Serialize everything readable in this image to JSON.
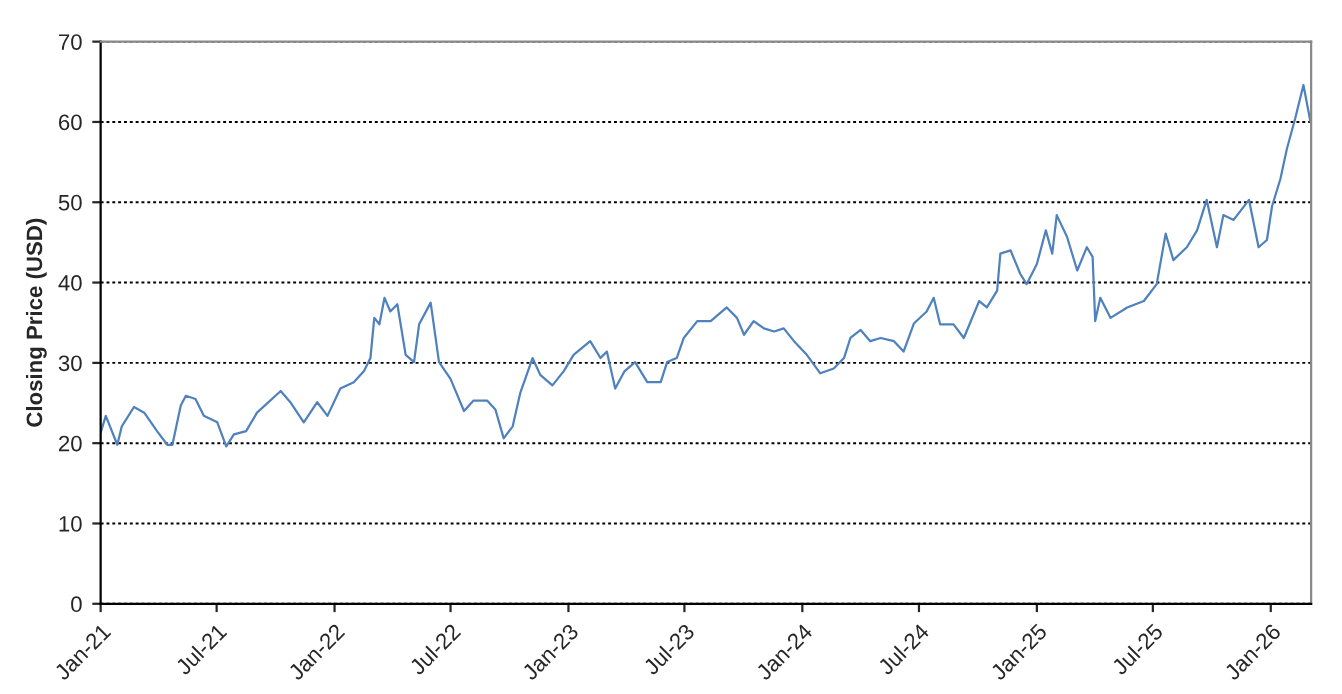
{
  "chart_data": {
    "type": "line",
    "ylabel": "Closing Price (USD)",
    "x": [
      "2021-01-01",
      "2021-01-09",
      "2021-01-27",
      "2021-02-03",
      "2021-02-22",
      "2021-03-10",
      "2021-03-30",
      "2021-04-15",
      "2021-04-23",
      "2021-05-06",
      "2021-05-14",
      "2021-05-29",
      "2021-06-11",
      "2021-07-02",
      "2021-07-16",
      "2021-07-28",
      "2021-08-16",
      "2021-09-02",
      "2021-10-09",
      "2021-10-24",
      "2021-11-14",
      "2021-12-05",
      "2021-12-21",
      "2022-01-10",
      "2022-01-31",
      "2022-02-16",
      "2022-02-26",
      "2022-03-04",
      "2022-03-12",
      "2022-03-20",
      "2022-03-29",
      "2022-04-09",
      "2022-04-22",
      "2022-05-05",
      "2022-05-13",
      "2022-05-31",
      "2022-06-13",
      "2022-07-01",
      "2022-07-22",
      "2022-08-06",
      "2022-08-27",
      "2022-09-09",
      "2022-09-22",
      "2022-10-06",
      "2022-10-18",
      "2022-11-06",
      "2022-11-18",
      "2022-12-07",
      "2022-12-25",
      "2023-01-09",
      "2023-02-04",
      "2023-02-20",
      "2023-03-02",
      "2023-03-15",
      "2023-03-29",
      "2023-04-15",
      "2023-05-04",
      "2023-05-25",
      "2023-06-04",
      "2023-06-19",
      "2023-06-30",
      "2023-07-21",
      "2023-08-11",
      "2023-09-05",
      "2023-09-21",
      "2023-10-02",
      "2023-10-17",
      "2023-11-02",
      "2023-11-18",
      "2023-12-03",
      "2023-12-19",
      "2024-01-08",
      "2024-01-29",
      "2024-02-19",
      "2024-03-06",
      "2024-03-16",
      "2024-04-01",
      "2024-04-16",
      "2024-05-02",
      "2024-05-23",
      "2024-06-07",
      "2024-06-23",
      "2024-07-13",
      "2024-07-24",
      "2024-08-03",
      "2024-08-24",
      "2024-09-09",
      "2024-10-03",
      "2024-10-15",
      "2024-10-31",
      "2024-11-05",
      "2024-11-21",
      "2024-12-06",
      "2024-12-16",
      "2025-01-01",
      "2025-01-15",
      "2025-01-25",
      "2025-02-01",
      "2025-02-17",
      "2025-03-05",
      "2025-03-20",
      "2025-03-29",
      "2025-04-02",
      "2025-04-10",
      "2025-04-26",
      "2025-05-22",
      "2025-06-17",
      "2025-07-07",
      "2025-07-21",
      "2025-08-02",
      "2025-08-23",
      "2025-09-08",
      "2025-09-23",
      "2025-10-09",
      "2025-10-19",
      "2025-11-04",
      "2025-11-28",
      "2025-12-13",
      "2025-12-26",
      "2026-01-03",
      "2026-01-16",
      "2026-01-26",
      "2026-02-08",
      "2026-02-21",
      "2026-03-04"
    ],
    "series": [
      {
        "color": "#4f81bd",
        "values": [
          21.3,
          23.4,
          19.8,
          22.1,
          24.5,
          23.8,
          21.5,
          19.8,
          19.8,
          24.7,
          25.9,
          25.5,
          23.4,
          22.6,
          19.6,
          21.1,
          21.5,
          23.8,
          26.5,
          25.1,
          22.6,
          25.1,
          23.4,
          26.8,
          27.6,
          29.0,
          30.6,
          35.6,
          34.8,
          38.1,
          36.4,
          37.3,
          31.0,
          30.1,
          34.8,
          37.5,
          30.1,
          28.0,
          24.0,
          25.3,
          25.3,
          24.2,
          20.6,
          22.1,
          26.3,
          30.6,
          28.5,
          27.2,
          29.0,
          31.0,
          32.7,
          30.6,
          31.4,
          26.8,
          28.9,
          30.1,
          27.6,
          27.6,
          30.1,
          30.6,
          33.1,
          35.2,
          35.2,
          36.9,
          35.6,
          33.5,
          35.2,
          34.3,
          33.9,
          34.3,
          32.7,
          31.0,
          28.7,
          29.3,
          30.6,
          33.1,
          34.1,
          32.7,
          33.1,
          32.7,
          31.4,
          34.9,
          36.4,
          38.1,
          34.8,
          34.8,
          33.1,
          37.7,
          36.9,
          39.0,
          43.6,
          44.0,
          41.1,
          39.8,
          42.3,
          46.5,
          43.6,
          48.4,
          45.7,
          41.5,
          44.4,
          43.2,
          35.2,
          38.1,
          35.6,
          36.9,
          37.7,
          39.8,
          46.1,
          42.8,
          44.4,
          46.5,
          50.3,
          44.4,
          48.4,
          47.8,
          50.3,
          44.4,
          45.3,
          49.5,
          52.9,
          56.6,
          60.4,
          64.6,
          60.0
        ]
      }
    ],
    "xlim": [
      "2021-01-01",
      "2026-03-05"
    ],
    "xticks": [
      {
        "value": "2021-01",
        "label": "Jan-21"
      },
      {
        "value": "2021-07",
        "label": "Jul-21"
      },
      {
        "value": "2022-01",
        "label": "Jan-22"
      },
      {
        "value": "2022-07",
        "label": "Jul-22"
      },
      {
        "value": "2023-01",
        "label": "Jan-23"
      },
      {
        "value": "2023-07",
        "label": "Jul-23"
      },
      {
        "value": "2024-01",
        "label": "Jan-24"
      },
      {
        "value": "2024-07",
        "label": "Jul-24"
      },
      {
        "value": "2025-01",
        "label": "Jan-25"
      },
      {
        "value": "2025-07",
        "label": "Jul-25"
      },
      {
        "value": "2026-01",
        "label": "Jan-26"
      }
    ],
    "ylim": [
      0,
      70
    ],
    "yticks": [
      0,
      10,
      20,
      30,
      40,
      50,
      60,
      70
    ],
    "grid": "y",
    "marker": "none",
    "line_style": "solid"
  }
}
